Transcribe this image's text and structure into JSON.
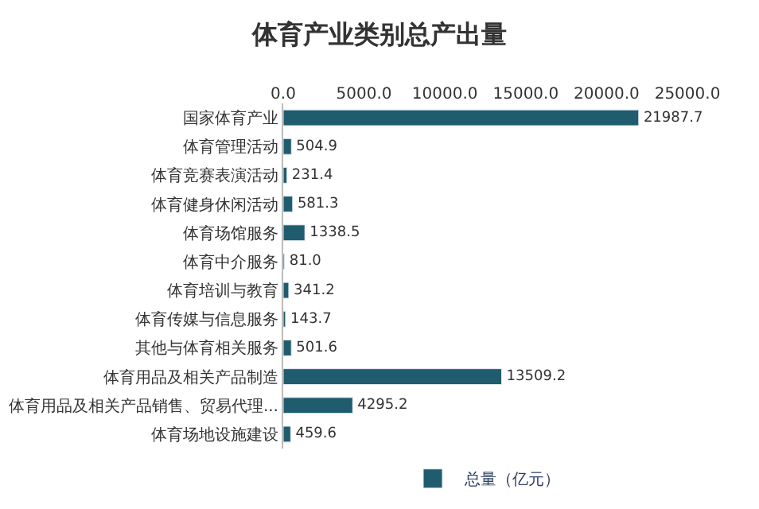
{
  "chart_data": {
    "type": "bar",
    "title": "体育产业类别总产出量",
    "orientation": "horizontal",
    "categories": [
      "国家体育产业",
      "体育管理活动",
      "体育竞赛表演活动",
      "体育健身休闲活动",
      "体育场馆服务",
      "体育中介服务",
      "体育培训与教育",
      "体育传媒与信息服务",
      "其他与体育相关服务",
      "体育用品及相关产品制造",
      "体育用品及相关产品销售、贸易代理...",
      "体育场地设施建设"
    ],
    "series": [
      {
        "name": "总量（亿元）",
        "color": "#1f5c6e",
        "values": [
          21987.7,
          504.9,
          231.4,
          581.3,
          1338.5,
          81.0,
          341.2,
          143.7,
          501.6,
          13509.2,
          4295.2,
          459.6
        ],
        "value_labels": [
          "21987.7",
          "504.9",
          "231.4",
          "581.3",
          "1338.5",
          "81.0",
          "341.2",
          "143.7",
          "501.6",
          "13509.2",
          "4295.2",
          "459.6"
        ]
      }
    ],
    "xlim": [
      0,
      25000
    ],
    "xticks": [
      {
        "value": 0,
        "label": "0.0"
      },
      {
        "value": 5000,
        "label": "5000.0"
      },
      {
        "value": 10000,
        "label": "10000.0"
      },
      {
        "value": 15000,
        "label": "15000.0"
      },
      {
        "value": 20000,
        "label": "20000.0"
      },
      {
        "value": 25000,
        "label": "25000.0"
      }
    ],
    "legend": "bottom"
  }
}
